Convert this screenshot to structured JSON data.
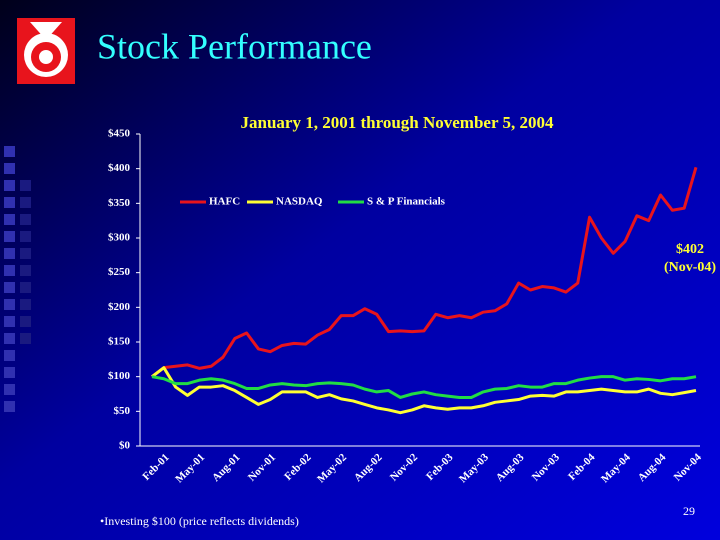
{
  "chart_data": {
    "type": "line",
    "title": "Stock Performance",
    "subtitle": "January 1, 2001 through November 5, 2004",
    "categories": [
      null,
      "Feb-01",
      null,
      null,
      "May-01",
      null,
      null,
      "Aug-01",
      null,
      null,
      "Nov-01",
      null,
      null,
      "Feb-02",
      null,
      null,
      "May-02",
      null,
      null,
      "Aug-02",
      null,
      null,
      "Nov-02",
      null,
      null,
      "Feb-03",
      null,
      null,
      "May-03",
      null,
      null,
      "Aug-03",
      null,
      null,
      "Nov-03",
      null,
      null,
      "Feb-04",
      null,
      null,
      "May-04",
      null,
      null,
      "Aug-04",
      null,
      null,
      "Nov-04"
    ],
    "series": [
      {
        "name": "HAFC",
        "color": "#e8141c",
        "values": [
          100,
          113,
          115,
          117,
          112,
          115,
          128,
          155,
          163,
          140,
          136,
          145,
          148,
          147,
          160,
          168,
          188,
          188,
          198,
          190,
          165,
          166,
          165,
          166,
          190,
          185,
          188,
          185,
          193,
          195,
          205,
          235,
          225,
          230,
          228,
          222,
          235,
          330,
          300,
          278,
          295,
          332,
          325,
          362,
          340,
          343,
          402
        ]
      },
      {
        "name": "NASDAQ",
        "color": "#ffff33",
        "values": [
          100,
          113,
          85,
          73,
          85,
          85,
          87,
          80,
          70,
          60,
          67,
          78,
          78,
          78,
          70,
          74,
          68,
          65,
          60,
          55,
          52,
          48,
          52,
          58,
          55,
          53,
          55,
          55,
          58,
          63,
          65,
          67,
          72,
          73,
          72,
          78,
          78,
          80,
          82,
          80,
          78,
          78,
          82,
          76,
          74,
          77,
          80
        ]
      },
      {
        "name": "S & P Financials",
        "color": "#22dd44",
        "values": [
          100,
          97,
          90,
          90,
          95,
          97,
          95,
          90,
          83,
          83,
          88,
          90,
          88,
          87,
          90,
          91,
          90,
          88,
          82,
          78,
          80,
          70,
          75,
          78,
          74,
          72,
          70,
          70,
          78,
          82,
          83,
          87,
          85,
          85,
          90,
          90,
          95,
          98,
          100,
          100,
          95,
          97,
          96,
          94,
          97,
          97,
          100
        ]
      }
    ],
    "ylim": [
      0,
      450
    ],
    "yticks": [
      {
        "value": 0,
        "label": "$0"
      },
      {
        "value": 50,
        "label": "$50"
      },
      {
        "value": 100,
        "label": "$100"
      },
      {
        "value": 150,
        "label": "$150"
      },
      {
        "value": 200,
        "label": "$200"
      },
      {
        "value": 250,
        "label": "$250"
      },
      {
        "value": 300,
        "label": "$300"
      },
      {
        "value": 350,
        "label": "$350"
      },
      {
        "value": 400,
        "label": "$400"
      },
      {
        "value": 450,
        "label": "$450"
      }
    ],
    "legend": "top",
    "annotation": [
      "$402",
      "(Nov-04)"
    ],
    "footnote": "•Investing $100  (price reflects dividends)",
    "page_number": "29"
  }
}
